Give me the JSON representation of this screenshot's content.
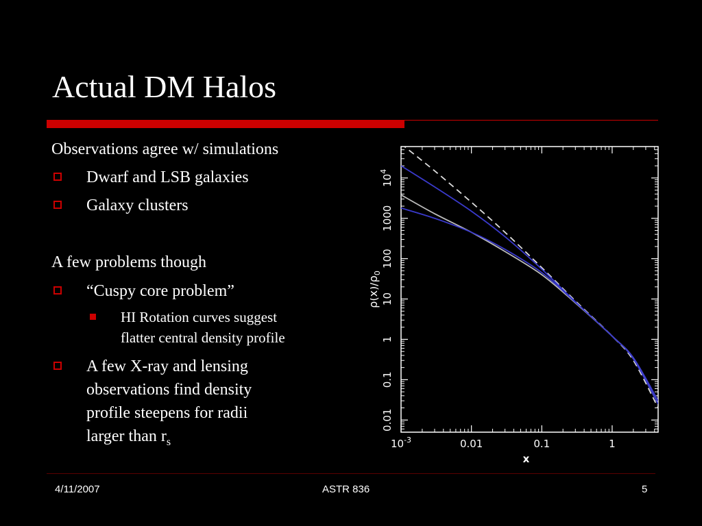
{
  "slide": {
    "title": "Actual DM Halos",
    "lines": {
      "obs_heading": "Observations agree w/ simulations",
      "b1": "Dwarf and LSB galaxies",
      "b2": "Galaxy clusters",
      "problems_heading": "A few problems though",
      "b3": "“Cuspy core problem”",
      "b3_sub_line1": "HI Rotation curves suggest",
      "b3_sub_line2": "flatter central density profile",
      "b4_line1": "A few X-ray and lensing",
      "b4_line2": "observations find density",
      "b4_line3": "profile steepens for radii",
      "b4_line4": "larger than r",
      "b4_subscript": "s"
    }
  },
  "footer": {
    "date": "4/11/2007",
    "course": "ASTR 836",
    "page": "5"
  },
  "colors": {
    "accent_red": "#cc0000",
    "curve_blue": "#3a3acc",
    "curve_grey": "#bbbbbb"
  },
  "chart_data": {
    "type": "line",
    "xlabel": "x",
    "ylabel": "ρ(x)/ρ0",
    "xscale": "log",
    "yscale": "log",
    "xlim": [
      0.001,
      4.5
    ],
    "ylim": [
      0.005,
      60000
    ],
    "xticks": [
      "10^-3",
      "0.01",
      "0.1",
      "1"
    ],
    "yticks": [
      "0.01",
      "0.1",
      "1",
      "10",
      "100",
      "1000",
      "10^4"
    ],
    "series": [
      {
        "style": "dashed",
        "color": "#dddddd",
        "x": [
          0.001,
          0.003,
          0.01,
          0.03,
          0.1,
          0.3,
          1,
          2,
          4.5
        ],
        "y": [
          70000,
          15000,
          2500,
          450,
          60,
          9,
          1.2,
          0.3,
          0.02
        ]
      },
      {
        "style": "solid",
        "color": "#3a3acc",
        "x": [
          0.001,
          0.003,
          0.01,
          0.03,
          0.1,
          0.3,
          1,
          2,
          4.5
        ],
        "y": [
          20000,
          6000,
          1500,
          350,
          55,
          8.5,
          1.2,
          0.35,
          0.03
        ]
      },
      {
        "style": "solid",
        "color": "#bbbbbb",
        "x": [
          0.001,
          0.003,
          0.01,
          0.03,
          0.1,
          0.3,
          1,
          2,
          4.5
        ],
        "y": [
          3800,
          1300,
          450,
          150,
          40,
          8,
          1.2,
          0.33,
          0.025
        ]
      },
      {
        "style": "solid",
        "color": "#3a3acc",
        "x": [
          0.001,
          0.003,
          0.01,
          0.03,
          0.1,
          0.3,
          1,
          2,
          4.5
        ],
        "y": [
          1800,
          1000,
          450,
          170,
          45,
          8.3,
          1.2,
          0.33,
          0.025
        ]
      }
    ]
  }
}
